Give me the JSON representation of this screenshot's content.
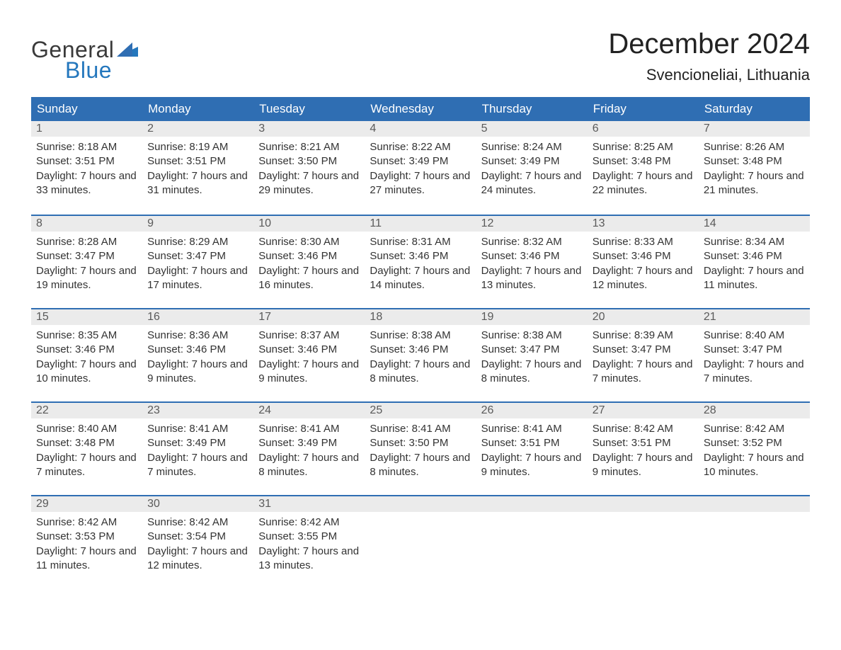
{
  "logo": {
    "text1": "General",
    "text2": "Blue"
  },
  "title": "December 2024",
  "location": "Svencioneliai, Lithuania",
  "colors": {
    "header_bg": "#2f6eb3",
    "header_text": "#ffffff",
    "week_separator": "#2f6eb3",
    "day_bar_bg": "#ebebeb",
    "day_bar_text": "#5a5a5a",
    "body_text": "#333333",
    "page_bg": "#ffffff",
    "logo_blue": "#2477bd",
    "logo_gray": "#3a3a3a"
  },
  "weekdays": [
    "Sunday",
    "Monday",
    "Tuesday",
    "Wednesday",
    "Thursday",
    "Friday",
    "Saturday"
  ],
  "weeks": [
    [
      {
        "num": "1",
        "sunrise": "Sunrise: 8:18 AM",
        "sunset": "Sunset: 3:51 PM",
        "daylight": "Daylight: 7 hours and 33 minutes."
      },
      {
        "num": "2",
        "sunrise": "Sunrise: 8:19 AM",
        "sunset": "Sunset: 3:51 PM",
        "daylight": "Daylight: 7 hours and 31 minutes."
      },
      {
        "num": "3",
        "sunrise": "Sunrise: 8:21 AM",
        "sunset": "Sunset: 3:50 PM",
        "daylight": "Daylight: 7 hours and 29 minutes."
      },
      {
        "num": "4",
        "sunrise": "Sunrise: 8:22 AM",
        "sunset": "Sunset: 3:49 PM",
        "daylight": "Daylight: 7 hours and 27 minutes."
      },
      {
        "num": "5",
        "sunrise": "Sunrise: 8:24 AM",
        "sunset": "Sunset: 3:49 PM",
        "daylight": "Daylight: 7 hours and 24 minutes."
      },
      {
        "num": "6",
        "sunrise": "Sunrise: 8:25 AM",
        "sunset": "Sunset: 3:48 PM",
        "daylight": "Daylight: 7 hours and 22 minutes."
      },
      {
        "num": "7",
        "sunrise": "Sunrise: 8:26 AM",
        "sunset": "Sunset: 3:48 PM",
        "daylight": "Daylight: 7 hours and 21 minutes."
      }
    ],
    [
      {
        "num": "8",
        "sunrise": "Sunrise: 8:28 AM",
        "sunset": "Sunset: 3:47 PM",
        "daylight": "Daylight: 7 hours and 19 minutes."
      },
      {
        "num": "9",
        "sunrise": "Sunrise: 8:29 AM",
        "sunset": "Sunset: 3:47 PM",
        "daylight": "Daylight: 7 hours and 17 minutes."
      },
      {
        "num": "10",
        "sunrise": "Sunrise: 8:30 AM",
        "sunset": "Sunset: 3:46 PM",
        "daylight": "Daylight: 7 hours and 16 minutes."
      },
      {
        "num": "11",
        "sunrise": "Sunrise: 8:31 AM",
        "sunset": "Sunset: 3:46 PM",
        "daylight": "Daylight: 7 hours and 14 minutes."
      },
      {
        "num": "12",
        "sunrise": "Sunrise: 8:32 AM",
        "sunset": "Sunset: 3:46 PM",
        "daylight": "Daylight: 7 hours and 13 minutes."
      },
      {
        "num": "13",
        "sunrise": "Sunrise: 8:33 AM",
        "sunset": "Sunset: 3:46 PM",
        "daylight": "Daylight: 7 hours and 12 minutes."
      },
      {
        "num": "14",
        "sunrise": "Sunrise: 8:34 AM",
        "sunset": "Sunset: 3:46 PM",
        "daylight": "Daylight: 7 hours and 11 minutes."
      }
    ],
    [
      {
        "num": "15",
        "sunrise": "Sunrise: 8:35 AM",
        "sunset": "Sunset: 3:46 PM",
        "daylight": "Daylight: 7 hours and 10 minutes."
      },
      {
        "num": "16",
        "sunrise": "Sunrise: 8:36 AM",
        "sunset": "Sunset: 3:46 PM",
        "daylight": "Daylight: 7 hours and 9 minutes."
      },
      {
        "num": "17",
        "sunrise": "Sunrise: 8:37 AM",
        "sunset": "Sunset: 3:46 PM",
        "daylight": "Daylight: 7 hours and 9 minutes."
      },
      {
        "num": "18",
        "sunrise": "Sunrise: 8:38 AM",
        "sunset": "Sunset: 3:46 PM",
        "daylight": "Daylight: 7 hours and 8 minutes."
      },
      {
        "num": "19",
        "sunrise": "Sunrise: 8:38 AM",
        "sunset": "Sunset: 3:47 PM",
        "daylight": "Daylight: 7 hours and 8 minutes."
      },
      {
        "num": "20",
        "sunrise": "Sunrise: 8:39 AM",
        "sunset": "Sunset: 3:47 PM",
        "daylight": "Daylight: 7 hours and 7 minutes."
      },
      {
        "num": "21",
        "sunrise": "Sunrise: 8:40 AM",
        "sunset": "Sunset: 3:47 PM",
        "daylight": "Daylight: 7 hours and 7 minutes."
      }
    ],
    [
      {
        "num": "22",
        "sunrise": "Sunrise: 8:40 AM",
        "sunset": "Sunset: 3:48 PM",
        "daylight": "Daylight: 7 hours and 7 minutes."
      },
      {
        "num": "23",
        "sunrise": "Sunrise: 8:41 AM",
        "sunset": "Sunset: 3:49 PM",
        "daylight": "Daylight: 7 hours and 7 minutes."
      },
      {
        "num": "24",
        "sunrise": "Sunrise: 8:41 AM",
        "sunset": "Sunset: 3:49 PM",
        "daylight": "Daylight: 7 hours and 8 minutes."
      },
      {
        "num": "25",
        "sunrise": "Sunrise: 8:41 AM",
        "sunset": "Sunset: 3:50 PM",
        "daylight": "Daylight: 7 hours and 8 minutes."
      },
      {
        "num": "26",
        "sunrise": "Sunrise: 8:41 AM",
        "sunset": "Sunset: 3:51 PM",
        "daylight": "Daylight: 7 hours and 9 minutes."
      },
      {
        "num": "27",
        "sunrise": "Sunrise: 8:42 AM",
        "sunset": "Sunset: 3:51 PM",
        "daylight": "Daylight: 7 hours and 9 minutes."
      },
      {
        "num": "28",
        "sunrise": "Sunrise: 8:42 AM",
        "sunset": "Sunset: 3:52 PM",
        "daylight": "Daylight: 7 hours and 10 minutes."
      }
    ],
    [
      {
        "num": "29",
        "sunrise": "Sunrise: 8:42 AM",
        "sunset": "Sunset: 3:53 PM",
        "daylight": "Daylight: 7 hours and 11 minutes."
      },
      {
        "num": "30",
        "sunrise": "Sunrise: 8:42 AM",
        "sunset": "Sunset: 3:54 PM",
        "daylight": "Daylight: 7 hours and 12 minutes."
      },
      {
        "num": "31",
        "sunrise": "Sunrise: 8:42 AM",
        "sunset": "Sunset: 3:55 PM",
        "daylight": "Daylight: 7 hours and 13 minutes."
      },
      {
        "empty": true
      },
      {
        "empty": true
      },
      {
        "empty": true
      },
      {
        "empty": true
      }
    ]
  ]
}
